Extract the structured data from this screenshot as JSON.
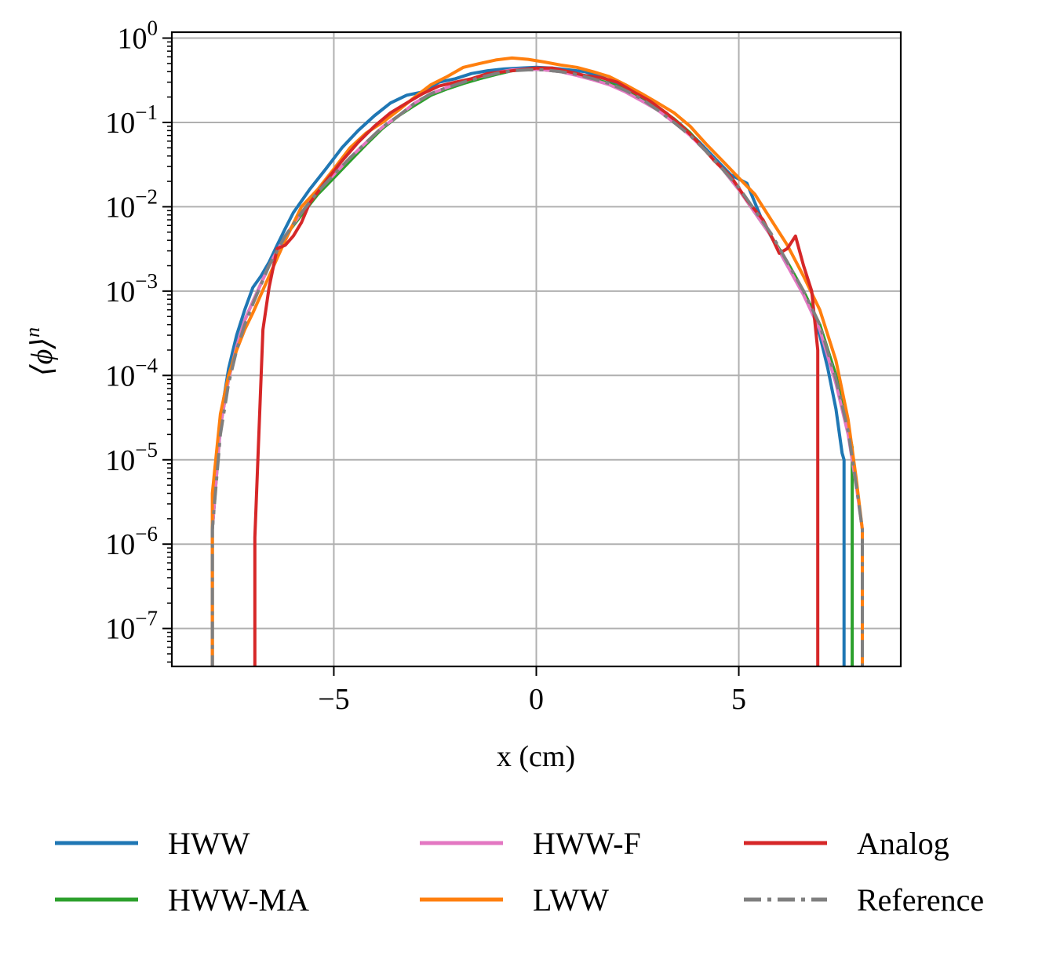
{
  "chart_data": {
    "type": "line",
    "title": "",
    "xlabel": "x (cm)",
    "ylabel": "⟨ϕ⟩",
    "ylabel_superscript": "n",
    "xlim": [
      -9,
      9
    ],
    "ylim_log10": [
      -7.45,
      0.07
    ],
    "yscale": "log",
    "grid": true,
    "legend_position": "bottom",
    "x_ticks": [
      {
        "value": -5,
        "label": "−5"
      },
      {
        "value": 0,
        "label": "0"
      },
      {
        "value": 5,
        "label": "5"
      }
    ],
    "y_ticks": [
      {
        "exp": 0,
        "base": "10",
        "sup": "0"
      },
      {
        "exp": -1,
        "base": "10",
        "sup": "−1"
      },
      {
        "exp": -2,
        "base": "10",
        "sup": "−2"
      },
      {
        "exp": -3,
        "base": "10",
        "sup": "−3"
      },
      {
        "exp": -4,
        "base": "10",
        "sup": "−4"
      },
      {
        "exp": -5,
        "base": "10",
        "sup": "−5"
      },
      {
        "exp": -6,
        "base": "10",
        "sup": "−6"
      },
      {
        "exp": -7,
        "base": "10",
        "sup": "−7"
      }
    ],
    "series": [
      {
        "name": "HWW",
        "color": "#1f77b4",
        "dash": "solid",
        "x": [
          -8.0,
          -8.0,
          -7.8,
          -7.6,
          -7.4,
          -7.2,
          -7.0,
          -6.8,
          -6.6,
          -6.4,
          -6.2,
          -6.0,
          -5.6,
          -5.2,
          -4.8,
          -4.4,
          -4.0,
          -3.6,
          -3.2,
          -2.8,
          -2.4,
          -2.0,
          -1.6,
          -1.2,
          -0.8,
          -0.4,
          0.0,
          0.4,
          0.8,
          1.2,
          1.6,
          2.0,
          2.4,
          2.8,
          3.2,
          3.6,
          4.0,
          4.4,
          4.8,
          5.2,
          5.6,
          6.0,
          6.2,
          6.4,
          6.6,
          6.8,
          7.0,
          7.2,
          7.4,
          7.55,
          7.6,
          7.6
        ],
        "y": [
          3e-08,
          1.5e-06,
          3e-05,
          0.00012,
          0.0003,
          0.0006,
          0.0011,
          0.0015,
          0.0022,
          0.0035,
          0.0055,
          0.0085,
          0.016,
          0.028,
          0.05,
          0.08,
          0.12,
          0.17,
          0.21,
          0.23,
          0.3,
          0.33,
          0.38,
          0.41,
          0.43,
          0.44,
          0.45,
          0.44,
          0.42,
          0.4,
          0.35,
          0.28,
          0.22,
          0.17,
          0.13,
          0.09,
          0.06,
          0.038,
          0.024,
          0.019,
          0.0065,
          0.003,
          0.002,
          0.0014,
          0.001,
          0.0006,
          0.0003,
          0.00012,
          4e-05,
          1.2e-05,
          1e-05,
          3e-08
        ]
      },
      {
        "name": "HWW-MA",
        "color": "#2ca02c",
        "dash": "solid",
        "x": [
          -8.0,
          -8.0,
          -7.8,
          -7.6,
          -7.4,
          -7.2,
          -7.0,
          -6.6,
          -6.2,
          -5.8,
          -5.4,
          -5.0,
          -4.6,
          -4.2,
          -3.8,
          -3.4,
          -3.0,
          -2.6,
          -2.2,
          -1.8,
          -1.4,
          -1.0,
          -0.6,
          -0.2,
          0.2,
          0.6,
          1.0,
          1.4,
          1.8,
          2.2,
          2.6,
          3.0,
          3.4,
          3.8,
          4.2,
          4.6,
          5.0,
          5.4,
          5.8,
          6.2,
          6.6,
          7.0,
          7.4,
          7.6,
          7.75,
          7.8,
          7.8
        ],
        "y": [
          3e-08,
          1.5e-06,
          2.5e-05,
          9e-05,
          0.00022,
          0.00045,
          0.00075,
          0.002,
          0.0045,
          0.008,
          0.014,
          0.022,
          0.035,
          0.055,
          0.085,
          0.12,
          0.16,
          0.21,
          0.25,
          0.29,
          0.33,
          0.37,
          0.41,
          0.43,
          0.42,
          0.4,
          0.37,
          0.33,
          0.29,
          0.25,
          0.2,
          0.15,
          0.11,
          0.075,
          0.045,
          0.028,
          0.016,
          0.0085,
          0.0045,
          0.0022,
          0.001,
          0.0004,
          0.0001,
          3.5e-05,
          1.8e-05,
          1.4e-05,
          3e-08
        ]
      },
      {
        "name": "HWW-F",
        "color": "#e377c2",
        "dash": "solid",
        "x": [
          -8.0,
          -8.0,
          -7.8,
          -7.6,
          -7.4,
          -7.2,
          -7.0,
          -6.6,
          -6.2,
          -5.8,
          -5.4,
          -5.0,
          -4.6,
          -4.2,
          -3.8,
          -3.4,
          -3.0,
          -2.6,
          -2.2,
          -1.8,
          -1.4,
          -1.0,
          -0.6,
          -0.2,
          0.2,
          0.6,
          1.0,
          1.4,
          1.8,
          2.2,
          2.6,
          3.0,
          3.4,
          3.8,
          4.2,
          4.6,
          5.0,
          5.4,
          5.8,
          6.2,
          6.6,
          7.0,
          7.4,
          7.7,
          7.9,
          8.05,
          8.05
        ],
        "y": [
          3e-08,
          1.5e-06,
          2.5e-05,
          9e-05,
          0.00022,
          0.00045,
          0.00075,
          0.002,
          0.0045,
          0.0085,
          0.015,
          0.024,
          0.038,
          0.058,
          0.088,
          0.12,
          0.17,
          0.22,
          0.26,
          0.31,
          0.35,
          0.39,
          0.42,
          0.43,
          0.42,
          0.4,
          0.36,
          0.32,
          0.28,
          0.23,
          0.18,
          0.14,
          0.1,
          0.07,
          0.045,
          0.028,
          0.016,
          0.0085,
          0.0045,
          0.002,
          0.0009,
          0.00035,
          8e-05,
          2e-05,
          5e-06,
          1.5e-06,
          3e-08
        ]
      },
      {
        "name": "LWW",
        "color": "#ff7f0e",
        "dash": "solid",
        "x": [
          -8.0,
          -8.0,
          -7.8,
          -7.6,
          -7.4,
          -7.2,
          -7.0,
          -6.6,
          -6.2,
          -5.8,
          -5.4,
          -5.0,
          -4.6,
          -4.2,
          -3.8,
          -3.4,
          -3.0,
          -2.6,
          -2.2,
          -1.8,
          -1.4,
          -1.0,
          -0.6,
          -0.2,
          0.2,
          0.6,
          1.0,
          1.4,
          1.8,
          2.2,
          2.6,
          3.0,
          3.4,
          3.8,
          4.2,
          4.6,
          5.0,
          5.4,
          5.8,
          6.2,
          6.6,
          7.0,
          7.4,
          7.7,
          7.9,
          8.05,
          8.05
        ],
        "y": [
          3e-08,
          4e-06,
          3.5e-05,
          0.0001,
          0.0002,
          0.00035,
          0.00055,
          0.0015,
          0.004,
          0.01,
          0.016,
          0.028,
          0.05,
          0.075,
          0.1,
          0.14,
          0.2,
          0.28,
          0.35,
          0.45,
          0.5,
          0.55,
          0.58,
          0.56,
          0.52,
          0.48,
          0.45,
          0.4,
          0.35,
          0.28,
          0.22,
          0.17,
          0.13,
          0.09,
          0.055,
          0.035,
          0.022,
          0.014,
          0.007,
          0.0035,
          0.0015,
          0.0006,
          0.00015,
          3e-05,
          6e-06,
          1.5e-06,
          3e-08
        ]
      },
      {
        "name": "Analog",
        "color": "#d62728",
        "dash": "solid",
        "x": [
          -6.95,
          -6.95,
          -6.75,
          -6.6,
          -6.4,
          -6.2,
          -6.0,
          -5.8,
          -5.6,
          -5.2,
          -4.8,
          -4.4,
          -4.0,
          -3.6,
          -3.2,
          -2.8,
          -2.4,
          -2.0,
          -1.6,
          -1.2,
          -0.8,
          -0.4,
          0.0,
          0.4,
          0.8,
          1.2,
          1.6,
          2.0,
          2.4,
          2.8,
          3.2,
          3.6,
          4.0,
          4.4,
          4.8,
          5.2,
          5.6,
          5.8,
          6.0,
          6.2,
          6.4,
          6.6,
          6.8,
          6.95,
          6.95
        ],
        "y": [
          3e-08,
          1.2e-06,
          0.00035,
          0.0011,
          0.0032,
          0.0035,
          0.0045,
          0.0065,
          0.011,
          0.02,
          0.035,
          0.058,
          0.09,
          0.13,
          0.17,
          0.22,
          0.27,
          0.3,
          0.33,
          0.38,
          0.4,
          0.42,
          0.44,
          0.44,
          0.4,
          0.36,
          0.34,
          0.3,
          0.23,
          0.18,
          0.13,
          0.09,
          0.058,
          0.035,
          0.023,
          0.012,
          0.007,
          0.0045,
          0.0028,
          0.0032,
          0.0045,
          0.002,
          0.001,
          0.0002,
          3e-08
        ]
      },
      {
        "name": "Reference",
        "color": "#7f7f7f",
        "dash": "dashdot",
        "x": [
          -8.0,
          -8.0,
          -7.8,
          -7.6,
          -7.4,
          -7.2,
          -7.0,
          -6.6,
          -6.2,
          -5.8,
          -5.4,
          -5.0,
          -4.6,
          -4.2,
          -3.8,
          -3.4,
          -3.0,
          -2.6,
          -2.2,
          -1.8,
          -1.4,
          -1.0,
          -0.6,
          -0.2,
          0.2,
          0.6,
          1.0,
          1.4,
          1.8,
          2.2,
          2.6,
          3.0,
          3.4,
          3.8,
          4.2,
          4.6,
          5.0,
          5.4,
          5.8,
          6.2,
          6.6,
          7.0,
          7.4,
          7.7,
          7.9,
          8.05,
          8.05
        ],
        "y": [
          3e-08,
          1.5e-06,
          2e-05,
          8e-05,
          0.0002,
          0.0004,
          0.0007,
          0.002,
          0.0045,
          0.0085,
          0.015,
          0.024,
          0.038,
          0.058,
          0.088,
          0.12,
          0.17,
          0.22,
          0.26,
          0.3,
          0.34,
          0.38,
          0.41,
          0.42,
          0.42,
          0.4,
          0.37,
          0.33,
          0.29,
          0.24,
          0.19,
          0.14,
          0.1,
          0.07,
          0.045,
          0.028,
          0.017,
          0.009,
          0.0048,
          0.0022,
          0.001,
          0.0004,
          9e-05,
          2.2e-05,
          5e-06,
          1.5e-06,
          3e-08
        ]
      }
    ]
  }
}
